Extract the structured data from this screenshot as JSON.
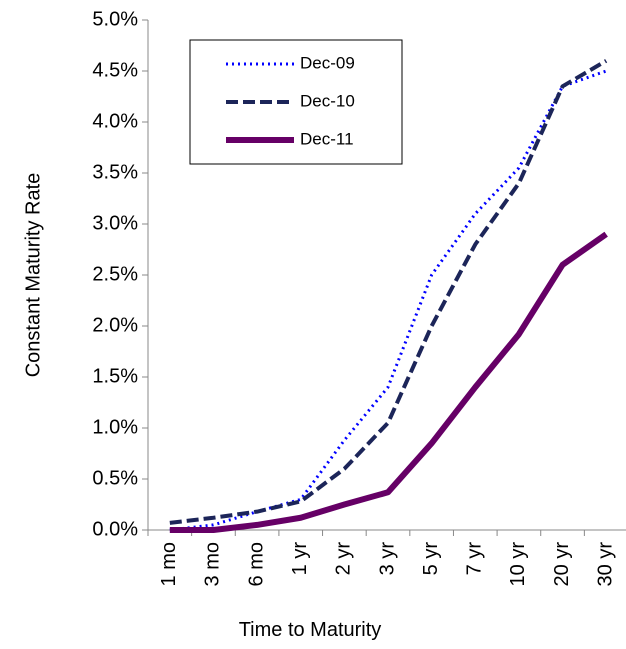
{
  "chart_data": {
    "type": "line",
    "x_label": "Time to Maturity",
    "y_label": "Constant Maturity Rate",
    "categories": [
      "1 mo",
      "3 mo",
      "6 mo",
      "1 yr",
      "2 yr",
      "3 yr",
      "5 yr",
      "7 yr",
      "10 yr",
      "20 yr",
      "30 yr"
    ],
    "series": [
      {
        "name": "Dec-09",
        "color": "#0000ff",
        "style": "dotted",
        "values": [
          0.0,
          0.05,
          0.18,
          0.3,
          0.88,
          1.4,
          2.5,
          3.1,
          3.55,
          4.35,
          4.5
        ]
      },
      {
        "name": "Dec-10",
        "color": "#1c2559",
        "style": "dashed",
        "values": [
          0.07,
          0.12,
          0.18,
          0.28,
          0.6,
          1.05,
          2.0,
          2.8,
          3.4,
          4.35,
          4.6
        ]
      },
      {
        "name": "Dec-11",
        "color": "#660066",
        "style": "solid",
        "values": [
          0.0,
          0.0,
          0.05,
          0.12,
          0.25,
          0.37,
          0.85,
          1.4,
          1.92,
          2.6,
          2.9
        ]
      }
    ],
    "ylim": [
      0,
      5
    ],
    "yticks": [
      {
        "value": 0,
        "label": "0.0%"
      },
      {
        "value": 0.5,
        "label": "0.5%"
      },
      {
        "value": 1,
        "label": "1.0%"
      },
      {
        "value": 1.5,
        "label": "1.5%"
      },
      {
        "value": 2,
        "label": "2.0%"
      },
      {
        "value": 2.5,
        "label": "2.5%"
      },
      {
        "value": 3,
        "label": "3.0%"
      },
      {
        "value": 3.5,
        "label": "3.5%"
      },
      {
        "value": 4,
        "label": "4.0%"
      },
      {
        "value": 4.5,
        "label": "4.5%"
      },
      {
        "value": 5,
        "label": "5.0%"
      }
    ],
    "grid": false,
    "legend": "upper left"
  }
}
